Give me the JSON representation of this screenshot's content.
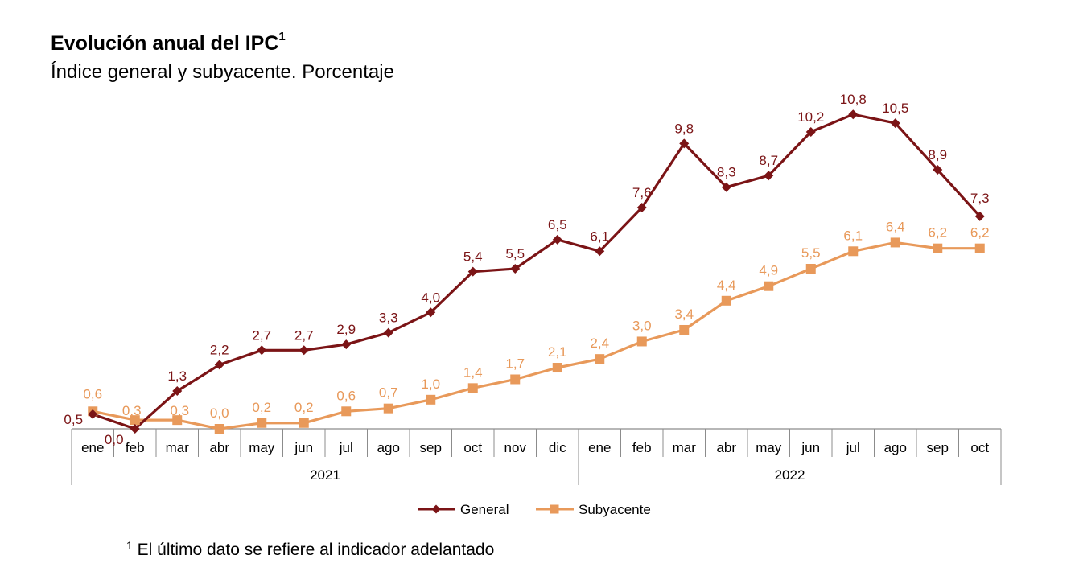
{
  "title": "Evolución anual del IPC",
  "title_sup": "1",
  "subtitle": "Índice general y subyacente. Porcentaje",
  "footnote_sup": "1",
  "footnote": "El último dato se refiere al indicador adelantado",
  "colors": {
    "general": "#7b1416",
    "subyacente": "#e8995a",
    "axis": "#8c8c8c"
  },
  "chart_data": {
    "type": "line",
    "title": "Evolución anual del IPC",
    "subtitle": "Índice general y subyacente. Porcentaje",
    "categories": [
      "ene",
      "feb",
      "mar",
      "abr",
      "may",
      "jun",
      "jul",
      "ago",
      "sep",
      "oct",
      "nov",
      "dic",
      "ene",
      "feb",
      "mar",
      "abr",
      "may",
      "jun",
      "jul",
      "ago",
      "sep",
      "oct"
    ],
    "years": [
      {
        "label": "2021",
        "start": 0,
        "end": 11
      },
      {
        "label": "2022",
        "start": 12,
        "end": 21
      }
    ],
    "series": [
      {
        "name": "General",
        "marker": "diamond",
        "values": [
          0.5,
          0.0,
          1.3,
          2.2,
          2.7,
          2.7,
          2.9,
          3.3,
          4.0,
          5.4,
          5.5,
          6.5,
          6.1,
          7.6,
          9.8,
          8.3,
          8.7,
          10.2,
          10.8,
          10.5,
          8.9,
          7.3
        ],
        "labels": [
          "0,5",
          "0,0",
          "1,3",
          "2,2",
          "2,7",
          "2,7",
          "2,9",
          "3,3",
          "4,0",
          "5,4",
          "5,5",
          "6,5",
          "6,1",
          "7,6",
          "9,8",
          "8,3",
          "8,7",
          "10,2",
          "10,8",
          "10,5",
          "8,9",
          "7,3"
        ]
      },
      {
        "name": "Subyacente",
        "marker": "square",
        "values": [
          0.6,
          0.3,
          0.3,
          0.0,
          0.2,
          0.2,
          0.6,
          0.7,
          1.0,
          1.4,
          1.7,
          2.1,
          2.4,
          3.0,
          3.4,
          4.4,
          4.9,
          5.5,
          6.1,
          6.4,
          6.2,
          6.2
        ],
        "labels": [
          "0,6",
          "0,3",
          "0,3",
          "0,0",
          "0,2",
          "0,2",
          "0,6",
          "0,7",
          "1,0",
          "1,4",
          "1,7",
          "2,1",
          "2,4",
          "3,0",
          "3,4",
          "4,4",
          "4,9",
          "5,5",
          "6,1",
          "6,4",
          "6,2",
          "6,2"
        ]
      }
    ],
    "ylim": [
      0,
      11
    ],
    "legend": "bottom-center"
  }
}
